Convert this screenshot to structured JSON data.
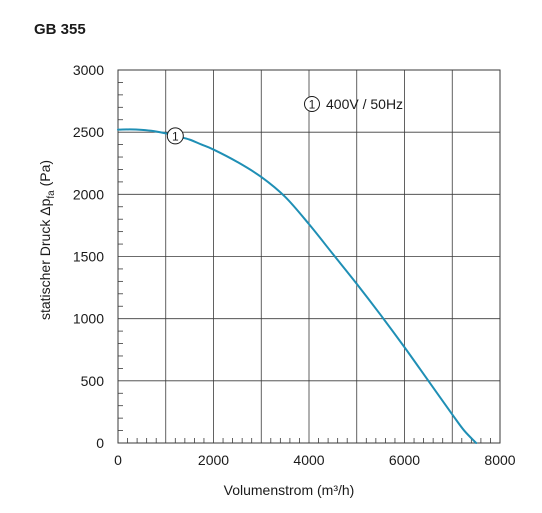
{
  "page": {
    "title": "GB 355"
  },
  "chart_data": {
    "type": "line",
    "title": "GB 355",
    "xlabel": "Volumenstrom (m³/h)",
    "ylabel": {
      "prefix": "statischer Druck Δp",
      "subscript": "fa",
      "suffix": " (Pa)"
    },
    "xlim": [
      0,
      8000
    ],
    "ylim": [
      0,
      3000
    ],
    "x_ticks": [
      0,
      2000,
      4000,
      6000,
      8000
    ],
    "y_ticks": [
      0,
      500,
      1000,
      1500,
      2000,
      2500,
      3000
    ],
    "grid": true,
    "legend": {
      "marker": "1",
      "text": "400V / 50Hz",
      "placement": "top-right"
    },
    "series": [
      {
        "name": "400V / 50Hz",
        "marker": "1",
        "marker_x": 1200,
        "color": "#1f8fb5",
        "x": [
          0,
          250,
          500,
          750,
          1000,
          1250,
          1500,
          1750,
          2000,
          2500,
          3000,
          3500,
          4000,
          4500,
          5000,
          5500,
          6000,
          6500,
          7000,
          7250,
          7500
        ],
        "y": [
          2520,
          2522,
          2518,
          2508,
          2490,
          2465,
          2440,
          2400,
          2360,
          2260,
          2140,
          1980,
          1760,
          1520,
          1280,
          1030,
          770,
          500,
          230,
          100,
          0
        ]
      }
    ]
  }
}
